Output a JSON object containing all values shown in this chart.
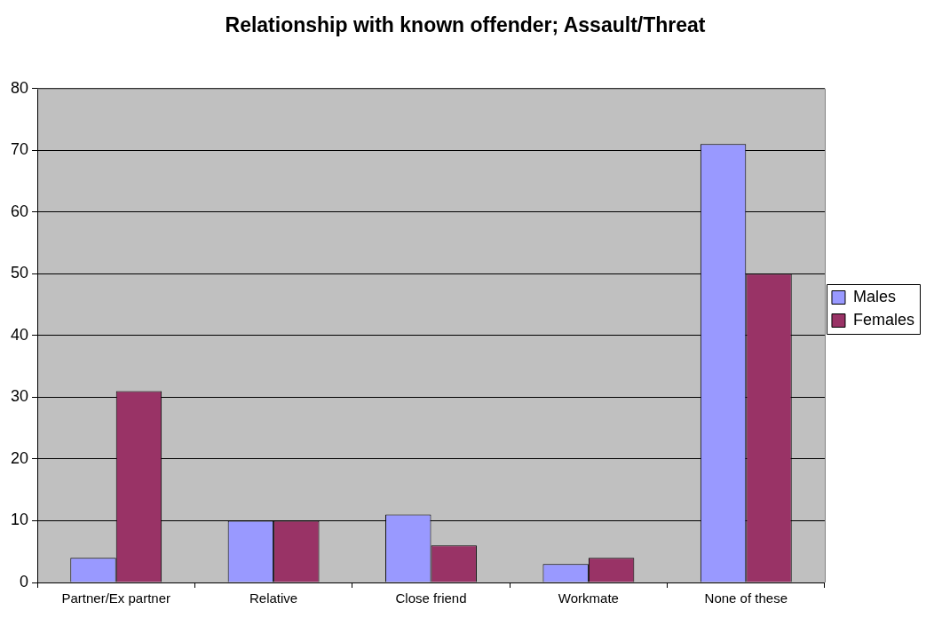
{
  "chart_data": {
    "type": "bar",
    "title": "Relationship with known offender; Assault/Threat",
    "categories": [
      "Partner/Ex partner",
      "Relative",
      "Close friend",
      "Workmate",
      "None of these"
    ],
    "series": [
      {
        "name": "Males",
        "color": "#9999ff",
        "values": [
          4,
          10,
          11,
          3,
          71
        ]
      },
      {
        "name": "Females",
        "color": "#993366",
        "values": [
          31,
          10,
          6,
          4,
          50
        ]
      }
    ],
    "ylim": [
      0,
      80
    ],
    "yticks": [
      0,
      10,
      20,
      30,
      40,
      50,
      60,
      70,
      80
    ],
    "grid": "y",
    "legend": "right"
  }
}
